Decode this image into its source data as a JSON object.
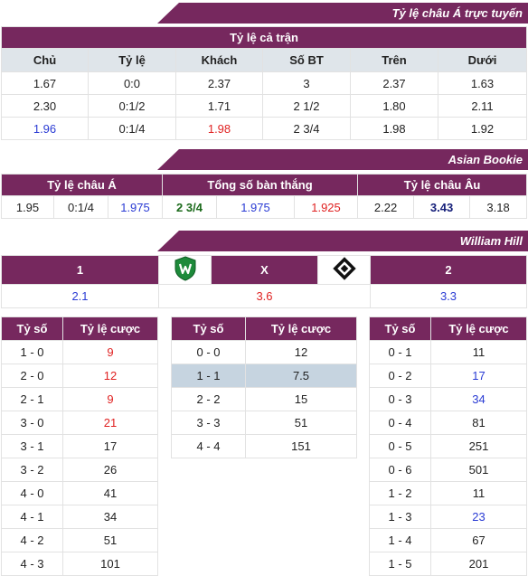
{
  "asian_live": {
    "banner": "Tỷ lệ châu Á trực tuyến",
    "section_title": "Tỷ lệ cả trận",
    "headers": [
      "Chủ",
      "Tỷ lệ",
      "Khách",
      "Số BT",
      "Trên",
      "Dưới"
    ],
    "rows": [
      [
        "1.67",
        "0:0",
        "2.37",
        "3",
        "2.37",
        "1.63"
      ],
      [
        "2.30",
        "0:1/2",
        "1.71",
        "2 1/2",
        "1.80",
        "2.11"
      ],
      [
        "1.96",
        "0:1/4",
        "1.98",
        "2 3/4",
        "1.98",
        "1.92"
      ]
    ]
  },
  "asian_bookie": {
    "banner": "Asian Bookie",
    "headers": [
      "Tỷ lệ châu Á",
      "Tổng số bàn thắng",
      "Tỷ lệ châu Âu"
    ],
    "values": [
      "1.95",
      "0:1/4",
      "1.975",
      "2 3/4",
      "1.975",
      "1.925",
      "2.22",
      "3.43",
      "3.18"
    ]
  },
  "william_hill": {
    "banner": "William Hill",
    "home_label": "1",
    "draw_label": "X",
    "away_label": "2",
    "home_odds": "2.1",
    "draw_odds": "3.6",
    "away_odds": "3.3",
    "home_logo": "werder-bremen-logo-icon",
    "away_logo": "hamburger-sv-logo-icon"
  },
  "correct_score": {
    "col_score": "Tỷ số",
    "col_odds": "Tỷ lệ cược",
    "home_wins": [
      {
        "score": "1 - 0",
        "odds": "9"
      },
      {
        "score": "2 - 0",
        "odds": "12"
      },
      {
        "score": "2 - 1",
        "odds": "9"
      },
      {
        "score": "3 - 0",
        "odds": "21"
      },
      {
        "score": "3 - 1",
        "odds": "17"
      },
      {
        "score": "3 - 2",
        "odds": "26"
      },
      {
        "score": "4 - 0",
        "odds": "41"
      },
      {
        "score": "4 - 1",
        "odds": "34"
      },
      {
        "score": "4 - 2",
        "odds": "51"
      },
      {
        "score": "4 - 3",
        "odds": "101"
      }
    ],
    "draws": [
      {
        "score": "0 - 0",
        "odds": "12"
      },
      {
        "score": "1 - 1",
        "odds": "7.5"
      },
      {
        "score": "2 - 2",
        "odds": "15"
      },
      {
        "score": "3 - 3",
        "odds": "51"
      },
      {
        "score": "4 - 4",
        "odds": "151"
      }
    ],
    "away_wins": [
      {
        "score": "0 - 1",
        "odds": "11"
      },
      {
        "score": "0 - 2",
        "odds": "17"
      },
      {
        "score": "0 - 3",
        "odds": "34"
      },
      {
        "score": "0 - 4",
        "odds": "81"
      },
      {
        "score": "0 - 5",
        "odds": "251"
      },
      {
        "score": "0 - 6",
        "odds": "501"
      },
      {
        "score": "1 - 2",
        "odds": "11"
      },
      {
        "score": "1 - 3",
        "odds": "23"
      },
      {
        "score": "1 - 4",
        "odds": "67"
      },
      {
        "score": "1 - 5",
        "odds": "201"
      }
    ]
  },
  "colors": {
    "header_purple": "#76285e",
    "header_grey": "#dfe5ea",
    "odds_blue": "#2a3bd4",
    "odds_red": "#e02222",
    "highlight_row": "#c6d4e0"
  }
}
